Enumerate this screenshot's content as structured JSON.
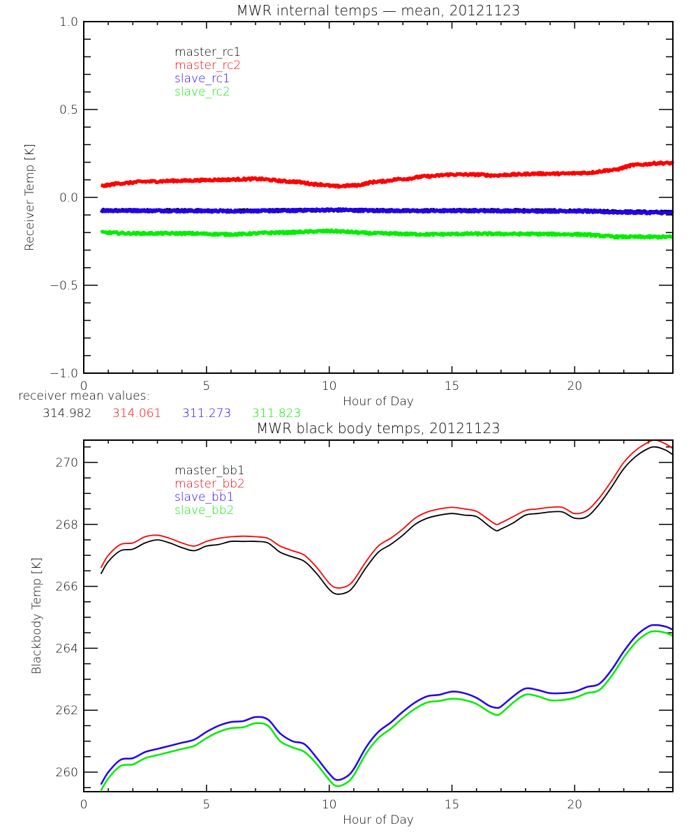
{
  "chart_data": [
    {
      "type": "line",
      "title": "MWR internal temps — mean, 20121123",
      "xlabel": "Hour of Day",
      "ylabel": "Receiver Temp [K]",
      "xlim": [
        0,
        24
      ],
      "ylim": [
        -1.0,
        1.0
      ],
      "xticks": [
        0,
        5,
        10,
        15,
        20
      ],
      "xtick_labels": [
        "0",
        "5",
        "10",
        "15",
        "20"
      ],
      "yticks": [
        -1.0,
        -0.5,
        0.0,
        0.5,
        1.0
      ],
      "ytick_labels": [
        "−1.0",
        "−0.5",
        "0.0",
        "0.5",
        "1.0"
      ],
      "grid": false,
      "legend_position": "top-left",
      "series": [
        {
          "name": "master_rc1",
          "color": "#000000",
          "x": [
            0.7,
            2,
            4,
            6,
            8,
            10,
            12,
            14,
            16,
            18,
            20,
            22,
            24
          ],
          "y": [
            -0.075,
            -0.075,
            -0.075,
            -0.077,
            -0.075,
            -0.072,
            -0.075,
            -0.075,
            -0.075,
            -0.075,
            -0.077,
            -0.082,
            -0.085
          ]
        },
        {
          "name": "master_rc2",
          "color": "#ff0000",
          "x": [
            0.7,
            1.5,
            2.5,
            4,
            5.5,
            7,
            8.5,
            9.5,
            10.3,
            11,
            12,
            13,
            14,
            15,
            16,
            16.7,
            17.5,
            18.5,
            19.5,
            20.5,
            21.5,
            22.5,
            23.5,
            24
          ],
          "y": [
            0.065,
            0.08,
            0.09,
            0.095,
            0.1,
            0.105,
            0.09,
            0.075,
            0.063,
            0.068,
            0.09,
            0.105,
            0.12,
            0.13,
            0.13,
            0.125,
            0.13,
            0.135,
            0.135,
            0.14,
            0.155,
            0.185,
            0.195,
            0.195
          ]
        },
        {
          "name": "slave_rc1",
          "color": "#2200ee",
          "x": [
            0.7,
            2,
            4,
            6,
            8,
            10,
            12,
            14,
            16,
            18,
            20,
            22,
            24
          ],
          "y": [
            -0.075,
            -0.075,
            -0.077,
            -0.078,
            -0.076,
            -0.071,
            -0.075,
            -0.077,
            -0.076,
            -0.078,
            -0.078,
            -0.085,
            -0.088
          ]
        },
        {
          "name": "slave_rc2",
          "color": "#00ee00",
          "x": [
            0.7,
            2,
            4,
            6,
            8,
            10,
            12,
            14,
            16,
            18,
            20,
            22,
            24
          ],
          "y": [
            -0.2,
            -0.205,
            -0.205,
            -0.21,
            -0.2,
            -0.192,
            -0.205,
            -0.21,
            -0.207,
            -0.208,
            -0.21,
            -0.225,
            -0.225
          ]
        }
      ],
      "annotations": {
        "label": "receiver mean values:",
        "values": [
          {
            "text": "314.982",
            "color": "#000000"
          },
          {
            "text": "314.061",
            "color": "#ff0000"
          },
          {
            "text": "311.273",
            "color": "#2200ee"
          },
          {
            "text": "311.823",
            "color": "#00ee00"
          }
        ]
      }
    },
    {
      "type": "line",
      "title": "MWR black body temps, 20121123",
      "xlabel": "Hour of Day",
      "ylabel": "Blackbody Temp [K]",
      "xlim": [
        0,
        24
      ],
      "ylim": [
        259.37,
        270.72
      ],
      "xticks": [
        0,
        5,
        10,
        15,
        20
      ],
      "xtick_labels": [
        "0",
        "5",
        "10",
        "15",
        "20"
      ],
      "yticks": [
        260,
        262,
        264,
        266,
        268,
        270
      ],
      "ytick_labels": [
        "260",
        "262",
        "264",
        "266",
        "268",
        "270"
      ],
      "grid": false,
      "legend_position": "top-left",
      "series": [
        {
          "name": "master_bb1",
          "color": "#000000",
          "x": [
            0.7,
            1.0,
            1.5,
            2.0,
            2.5,
            3.0,
            3.5,
            4.0,
            4.5,
            5.0,
            5.5,
            6.0,
            6.5,
            7.0,
            7.5,
            8.0,
            8.5,
            9.0,
            9.5,
            10.0,
            10.3,
            10.7,
            11.0,
            11.5,
            12.0,
            12.5,
            13.0,
            13.5,
            14.0,
            14.5,
            15.0,
            15.5,
            16.0,
            16.5,
            16.8,
            17.0,
            17.5,
            18.0,
            18.5,
            19.0,
            19.5,
            20.0,
            20.5,
            21.0,
            21.5,
            22.0,
            22.5,
            23.0,
            23.3,
            23.7,
            24.0
          ],
          "y": [
            266.4,
            266.8,
            267.15,
            267.2,
            267.4,
            267.5,
            267.4,
            267.25,
            267.15,
            267.3,
            267.35,
            267.45,
            267.45,
            267.45,
            267.4,
            267.1,
            266.95,
            266.8,
            266.4,
            265.9,
            265.75,
            265.8,
            266.0,
            266.6,
            267.1,
            267.35,
            267.65,
            268.0,
            268.2,
            268.3,
            268.35,
            268.3,
            268.25,
            267.95,
            267.8,
            267.85,
            268.05,
            268.3,
            268.35,
            268.4,
            268.4,
            268.2,
            268.25,
            268.65,
            269.2,
            269.8,
            270.2,
            270.45,
            270.5,
            270.4,
            270.25
          ]
        },
        {
          "name": "master_bb2",
          "color": "#ff0000",
          "x": [
            0.7,
            1.0,
            1.5,
            2.0,
            2.5,
            3.0,
            3.5,
            4.0,
            4.5,
            5.0,
            5.5,
            6.0,
            6.5,
            7.0,
            7.5,
            8.0,
            8.5,
            9.0,
            9.5,
            10.0,
            10.3,
            10.7,
            11.0,
            11.5,
            12.0,
            12.5,
            13.0,
            13.5,
            14.0,
            14.5,
            15.0,
            15.5,
            16.0,
            16.5,
            16.8,
            17.0,
            17.5,
            18.0,
            18.5,
            19.0,
            19.5,
            20.0,
            20.5,
            21.0,
            21.5,
            22.0,
            22.5,
            23.0,
            23.3,
            23.7,
            24.0
          ],
          "y": [
            266.6,
            267.0,
            267.35,
            267.4,
            267.6,
            267.65,
            267.55,
            267.4,
            267.3,
            267.45,
            267.55,
            267.6,
            267.62,
            267.6,
            267.55,
            267.3,
            267.15,
            267.0,
            266.6,
            266.1,
            265.95,
            266.0,
            266.2,
            266.8,
            267.3,
            267.55,
            267.85,
            268.2,
            268.4,
            268.5,
            268.55,
            268.5,
            268.42,
            268.15,
            268.0,
            268.05,
            268.25,
            268.45,
            268.5,
            268.55,
            268.55,
            268.35,
            268.45,
            268.85,
            269.4,
            270.0,
            270.4,
            270.65,
            270.72,
            270.6,
            270.45
          ]
        },
        {
          "name": "slave_bb1",
          "color": "#2200ee",
          "x": [
            0.7,
            1.0,
            1.5,
            2.0,
            2.5,
            3.0,
            3.5,
            4.0,
            4.5,
            5.0,
            5.5,
            6.0,
            6.5,
            7.0,
            7.5,
            8.0,
            8.5,
            9.0,
            9.5,
            10.0,
            10.3,
            10.7,
            11.0,
            11.5,
            12.0,
            12.5,
            13.0,
            13.5,
            14.0,
            14.5,
            15.0,
            15.5,
            16.0,
            16.5,
            16.8,
            17.0,
            17.5,
            18.0,
            18.5,
            19.0,
            19.5,
            20.0,
            20.5,
            21.0,
            21.5,
            22.0,
            22.5,
            23.0,
            23.3,
            23.7,
            24.0
          ],
          "y": [
            259.6,
            260.0,
            260.4,
            260.45,
            260.65,
            260.75,
            260.85,
            260.95,
            261.05,
            261.3,
            261.5,
            261.62,
            261.65,
            261.78,
            261.7,
            261.25,
            261.0,
            260.9,
            260.45,
            259.95,
            259.75,
            259.85,
            260.1,
            260.8,
            261.3,
            261.6,
            261.95,
            262.25,
            262.45,
            262.5,
            262.6,
            262.55,
            262.4,
            262.15,
            262.08,
            262.12,
            262.45,
            262.7,
            262.65,
            262.55,
            262.55,
            262.6,
            262.75,
            262.85,
            263.3,
            263.9,
            264.4,
            264.7,
            264.75,
            264.7,
            264.6
          ]
        },
        {
          "name": "slave_bb2",
          "color": "#00ee00",
          "x": [
            0.7,
            1.0,
            1.5,
            2.0,
            2.5,
            3.0,
            3.5,
            4.0,
            4.5,
            5.0,
            5.5,
            6.0,
            6.5,
            7.0,
            7.5,
            8.0,
            8.5,
            9.0,
            9.5,
            10.0,
            10.3,
            10.7,
            11.0,
            11.5,
            12.0,
            12.5,
            13.0,
            13.5,
            14.0,
            14.5,
            15.0,
            15.5,
            16.0,
            16.5,
            16.8,
            17.0,
            17.5,
            18.0,
            18.5,
            19.0,
            19.5,
            20.0,
            20.5,
            21.0,
            21.5,
            22.0,
            22.5,
            23.0,
            23.3,
            23.7,
            24.0
          ],
          "y": [
            259.4,
            259.8,
            260.2,
            260.25,
            260.45,
            260.55,
            260.65,
            260.75,
            260.85,
            261.1,
            261.3,
            261.42,
            261.45,
            261.58,
            261.5,
            261.0,
            260.8,
            260.65,
            260.25,
            259.75,
            259.55,
            259.65,
            259.9,
            260.6,
            261.1,
            261.4,
            261.75,
            262.05,
            262.25,
            262.3,
            262.37,
            262.33,
            262.2,
            261.95,
            261.85,
            261.9,
            262.25,
            262.5,
            262.45,
            262.32,
            262.33,
            262.4,
            262.55,
            262.65,
            263.1,
            263.7,
            264.2,
            264.5,
            264.55,
            264.5,
            264.4
          ]
        }
      ]
    }
  ]
}
